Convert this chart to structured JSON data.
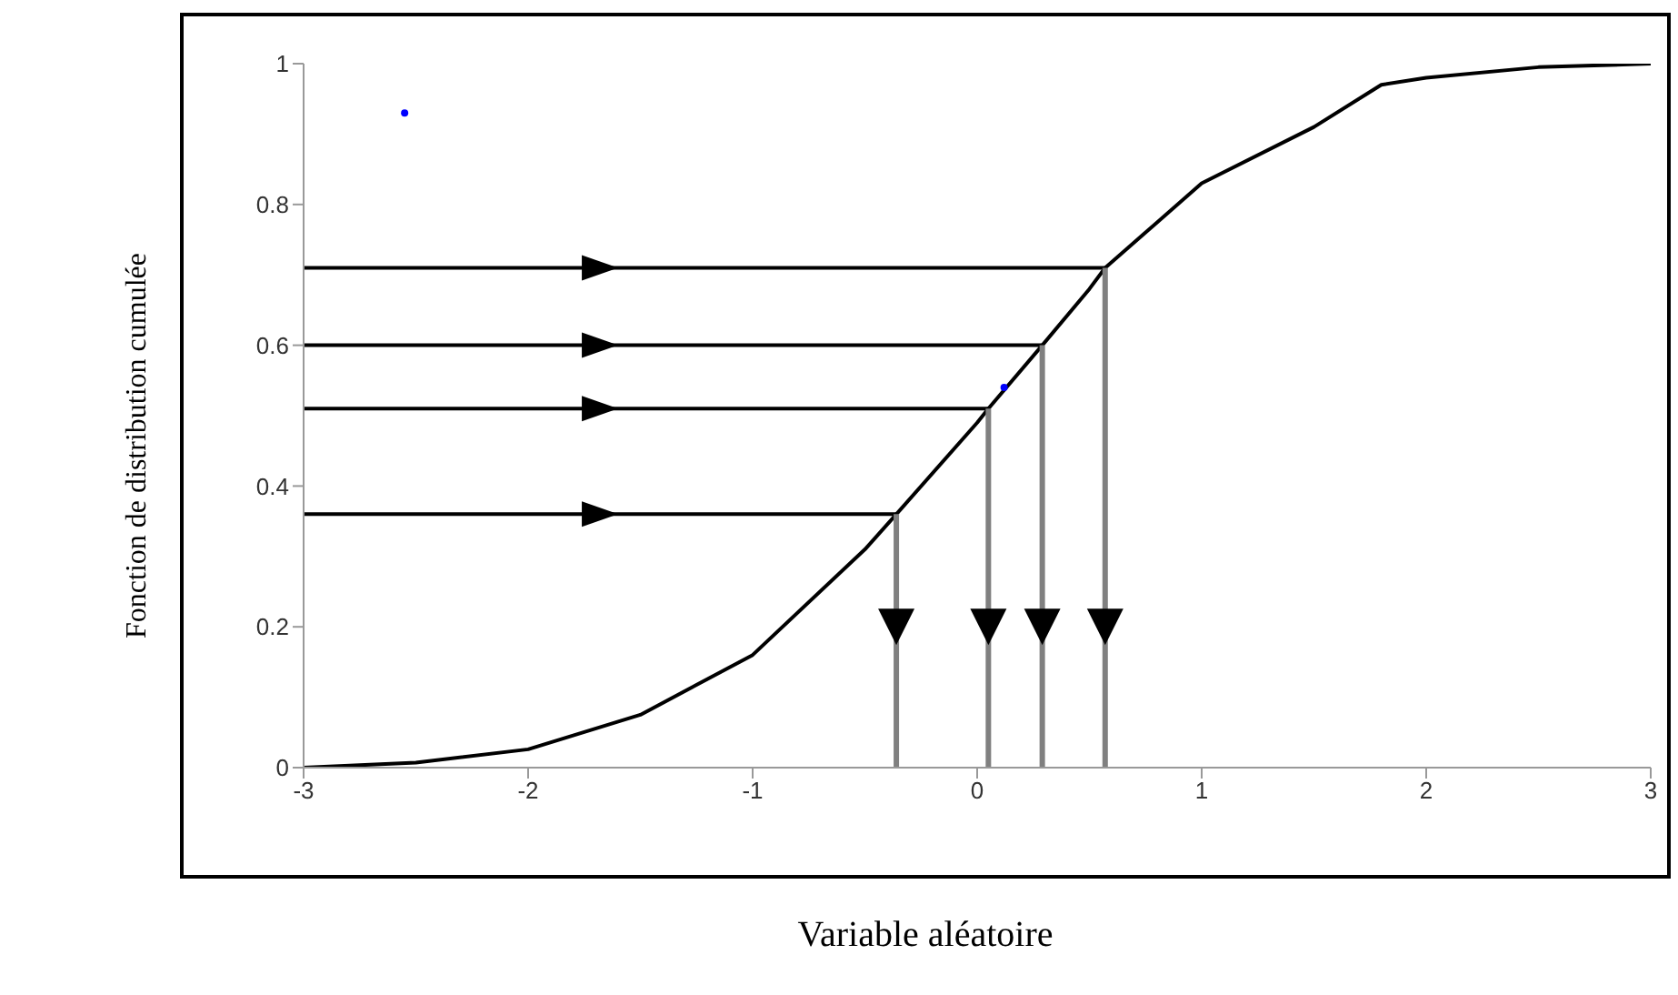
{
  "chart_data": {
    "type": "line",
    "xlabel": "Variable aléatoire",
    "ylabel": "Fonction de distribution cumulée",
    "xlim": [
      -3,
      3
    ],
    "ylim": [
      0,
      1
    ],
    "xticks": [
      -3,
      -2,
      -1,
      0,
      1,
      2,
      3
    ],
    "yticks": [
      0,
      0.2,
      0.4,
      0.6,
      0.8,
      1
    ],
    "line_style": "solid",
    "series": [
      {
        "color": "#000000",
        "x": [
          -3,
          -2.5,
          -2,
          -1.5,
          -1,
          -0.5,
          -0.36,
          0,
          0.05,
          0.29,
          0.5,
          0.57,
          1,
          1.5,
          1.8,
          2,
          2.5,
          3
        ],
        "values": [
          0,
          0.007,
          0.026,
          0.075,
          0.16,
          0.31,
          0.36,
          0.49,
          0.51,
          0.6,
          0.68,
          0.71,
          0.83,
          0.91,
          0.97,
          0.98,
          0.995,
          1
        ]
      },
      {
        "color": "#000000",
        "x": [
          -3,
          0.57
        ],
        "values": [
          0.71,
          0.71
        ]
      },
      {
        "color": "#000000",
        "x": [
          -3,
          0.29
        ],
        "values": [
          0.6,
          0.6
        ]
      },
      {
        "color": "#000000",
        "x": [
          -3,
          0.05
        ],
        "values": [
          0.51,
          0.51
        ]
      },
      {
        "color": "#000000",
        "x": [
          -3,
          -0.36
        ],
        "values": [
          0.36,
          0.36
        ]
      },
      {
        "color": "#808080",
        "x": [
          -0.36,
          -0.36
        ],
        "values": [
          0.36,
          0
        ]
      },
      {
        "color": "#808080",
        "x": [
          0.05,
          0.05
        ],
        "values": [
          0.51,
          0
        ]
      },
      {
        "color": "#808080",
        "x": [
          0.29,
          0.29
        ],
        "values": [
          0.6,
          0
        ]
      },
      {
        "color": "#808080",
        "x": [
          0.57,
          0.57
        ],
        "values": [
          0.71,
          0
        ]
      },
      {
        "type": "scatter",
        "color": "#0000ff",
        "x": [
          -2.55,
          0.12
        ],
        "values": [
          0.93,
          0.54
        ]
      }
    ]
  }
}
